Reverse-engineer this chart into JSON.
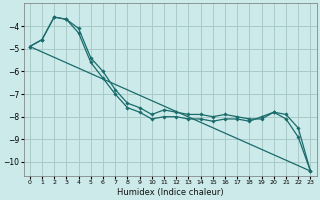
{
  "xlabel": "Humidex (Indice chaleur)",
  "background_color": "#cceaea",
  "grid_color": "#aacaca",
  "line_color": "#1a6b6b",
  "xlim": [
    -0.5,
    23.5
  ],
  "ylim": [
    -10.6,
    -3.0
  ],
  "yticks": [
    -10,
    -9,
    -8,
    -7,
    -6,
    -5,
    -4
  ],
  "xticks": [
    0,
    1,
    2,
    3,
    4,
    5,
    6,
    7,
    8,
    9,
    10,
    11,
    12,
    13,
    14,
    15,
    16,
    17,
    18,
    19,
    20,
    21,
    22,
    23
  ],
  "series": [
    {
      "x": [
        0,
        1,
        2,
        3,
        4,
        5,
        6,
        7,
        8,
        9,
        10,
        11,
        12,
        13,
        14,
        15,
        16,
        17,
        18,
        19,
        20,
        21,
        22,
        23
      ],
      "y": [
        -4.9,
        -4.6,
        -3.6,
        -3.7,
        -4.1,
        -5.4,
        -6.0,
        -6.8,
        -7.4,
        -7.6,
        -7.9,
        -7.7,
        -7.8,
        -7.9,
        -7.9,
        -8.0,
        -7.9,
        -8.0,
        -8.1,
        -8.1,
        -7.8,
        -8.1,
        -8.9,
        -10.4
      ],
      "marker": true
    },
    {
      "x": [
        0,
        23
      ],
      "y": [
        -4.9,
        -10.4
      ],
      "marker": false
    },
    {
      "x": [
        0,
        1,
        2,
        3,
        4,
        5,
        6,
        7,
        8,
        9,
        10,
        11,
        12,
        13,
        14,
        15,
        16,
        17,
        18,
        19,
        20,
        21,
        22,
        23
      ],
      "y": [
        -4.9,
        -4.6,
        -3.6,
        -3.7,
        -4.3,
        -5.6,
        -6.3,
        -7.0,
        -7.6,
        -7.8,
        -8.1,
        -8.0,
        -8.0,
        -8.1,
        -8.1,
        -8.2,
        -8.1,
        -8.1,
        -8.2,
        -8.0,
        -7.8,
        -7.9,
        -8.5,
        -10.4
      ],
      "marker": true
    }
  ]
}
